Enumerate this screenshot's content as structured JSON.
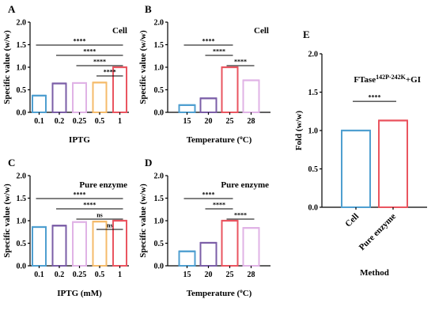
{
  "colors": {
    "blue": "#4f9fd0",
    "purple": "#7b5ea7",
    "pink": "#e0b3e6",
    "orange": "#f5bb6b",
    "red": "#ea5560"
  },
  "chart_data": [
    {
      "panel": "A",
      "type": "bar",
      "corner_label": "Cell",
      "xlabel": "IPTG",
      "ylabel": "Specific value (w/w)",
      "ylim": [
        0,
        2.0
      ],
      "yticks": [
        "0.0",
        "0.5",
        "1.0",
        "1.5",
        "2.0"
      ],
      "categories": [
        "0.1",
        "0.2",
        "0.25",
        "0.5",
        "1"
      ],
      "values": [
        0.37,
        0.64,
        0.65,
        0.66,
        1.0
      ],
      "colors": [
        "#4f9fd0",
        "#7b5ea7",
        "#e0b3e6",
        "#f5bb6b",
        "#ea5560"
      ],
      "significance": [
        {
          "from": 0,
          "to": 4,
          "label": "****"
        },
        {
          "from": 1,
          "to": 4,
          "label": "****"
        },
        {
          "from": 2,
          "to": 4,
          "label": "****"
        },
        {
          "from": 3,
          "to": 4,
          "label": "****"
        }
      ]
    },
    {
      "panel": "B",
      "type": "bar",
      "corner_label": "Cell",
      "xlabel": "Temperature (°C)",
      "ylabel": "Specific value (w/w)",
      "ylim": [
        0,
        2.0
      ],
      "yticks": [
        "0.0",
        "0.5",
        "1.0",
        "1.5",
        "2.0"
      ],
      "categories": [
        "15",
        "20",
        "25",
        "28"
      ],
      "values": [
        0.16,
        0.31,
        1.0,
        0.71
      ],
      "colors": [
        "#4f9fd0",
        "#7b5ea7",
        "#ea5560",
        "#e0b3e6"
      ],
      "significance": [
        {
          "from": 0,
          "to": 2,
          "label": "****"
        },
        {
          "from": 1,
          "to": 2,
          "label": "****"
        },
        {
          "from": 2,
          "to": 3,
          "label": "****"
        }
      ]
    },
    {
      "panel": "C",
      "type": "bar",
      "corner_label": "Pure enzyme",
      "xlabel": "IPTG (mM)",
      "ylabel": "Specific value (w/w)",
      "ylim": [
        0,
        2.0
      ],
      "yticks": [
        "0.0",
        "0.5",
        "1.0",
        "1.5",
        "2.0"
      ],
      "categories": [
        "0.1",
        "0.2",
        "0.25",
        "0.5",
        "1"
      ],
      "values": [
        0.86,
        0.89,
        0.97,
        0.98,
        1.0
      ],
      "colors": [
        "#4f9fd0",
        "#7b5ea7",
        "#e0b3e6",
        "#f5bb6b",
        "#ea5560"
      ],
      "significance": [
        {
          "from": 0,
          "to": 4,
          "label": "****"
        },
        {
          "from": 1,
          "to": 4,
          "label": "****"
        },
        {
          "from": 2,
          "to": 4,
          "label": "ns"
        },
        {
          "from": 3,
          "to": 4,
          "label": "ns"
        }
      ]
    },
    {
      "panel": "D",
      "type": "bar",
      "corner_label": "Pure enzyme",
      "xlabel": "Temperature (°C)",
      "ylabel": "Specific value (w/w)",
      "ylim": [
        0,
        2.0
      ],
      "yticks": [
        "0.0",
        "0.5",
        "1.0",
        "1.5",
        "2.0"
      ],
      "categories": [
        "15",
        "20",
        "25",
        "28"
      ],
      "values": [
        0.32,
        0.51,
        1.0,
        0.84
      ],
      "colors": [
        "#4f9fd0",
        "#7b5ea7",
        "#ea5560",
        "#e0b3e6"
      ],
      "significance": [
        {
          "from": 0,
          "to": 2,
          "label": "****"
        },
        {
          "from": 1,
          "to": 2,
          "label": "****"
        },
        {
          "from": 2,
          "to": 3,
          "label": "****"
        }
      ]
    },
    {
      "panel": "E",
      "type": "bar",
      "corner_label": "FTase",
      "corner_label_sup": "142P-242K",
      "corner_label_tail": "+GI",
      "xlabel": "Method",
      "ylabel": "Fold (w/w)",
      "ylim": [
        0,
        2.0
      ],
      "yticks": [
        "0.0",
        "0.5",
        "1.0",
        "1.5",
        "2.0"
      ],
      "categories": [
        "Cell",
        "Pure enzyme"
      ],
      "values": [
        1.0,
        1.13
      ],
      "colors": [
        "#4f9fd0",
        "#ea5560"
      ],
      "significance": [
        {
          "from": 0,
          "to": 1,
          "label": "****"
        }
      ]
    }
  ]
}
